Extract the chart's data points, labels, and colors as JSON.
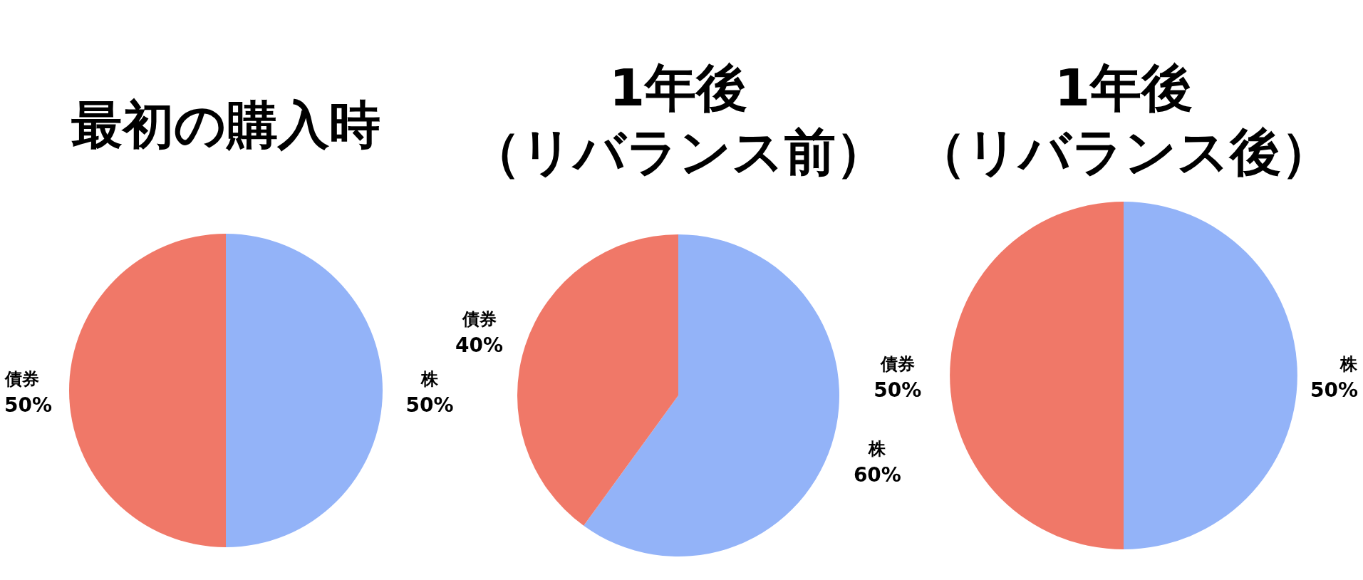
{
  "chart_data": [
    {
      "type": "pie",
      "title": "最初の購入時",
      "categories": [
        "株",
        "債券"
      ],
      "values": [
        50,
        50
      ],
      "value_labels": [
        "50%",
        "50%"
      ],
      "colors": [
        "#93b3f8",
        "#f07868"
      ]
    },
    {
      "type": "pie",
      "title": "1年後",
      "subtitle": "（リバランス前）",
      "categories": [
        "株",
        "債券"
      ],
      "values": [
        60,
        40
      ],
      "value_labels": [
        "60%",
        "40%"
      ],
      "colors": [
        "#93b3f8",
        "#f07868"
      ]
    },
    {
      "type": "pie",
      "title": "1年後",
      "subtitle": "（リバランス後）",
      "categories": [
        "株",
        "債券"
      ],
      "values": [
        50,
        50
      ],
      "value_labels": [
        "50%",
        "50%"
      ],
      "colors": [
        "#93b3f8",
        "#f07868"
      ]
    }
  ]
}
